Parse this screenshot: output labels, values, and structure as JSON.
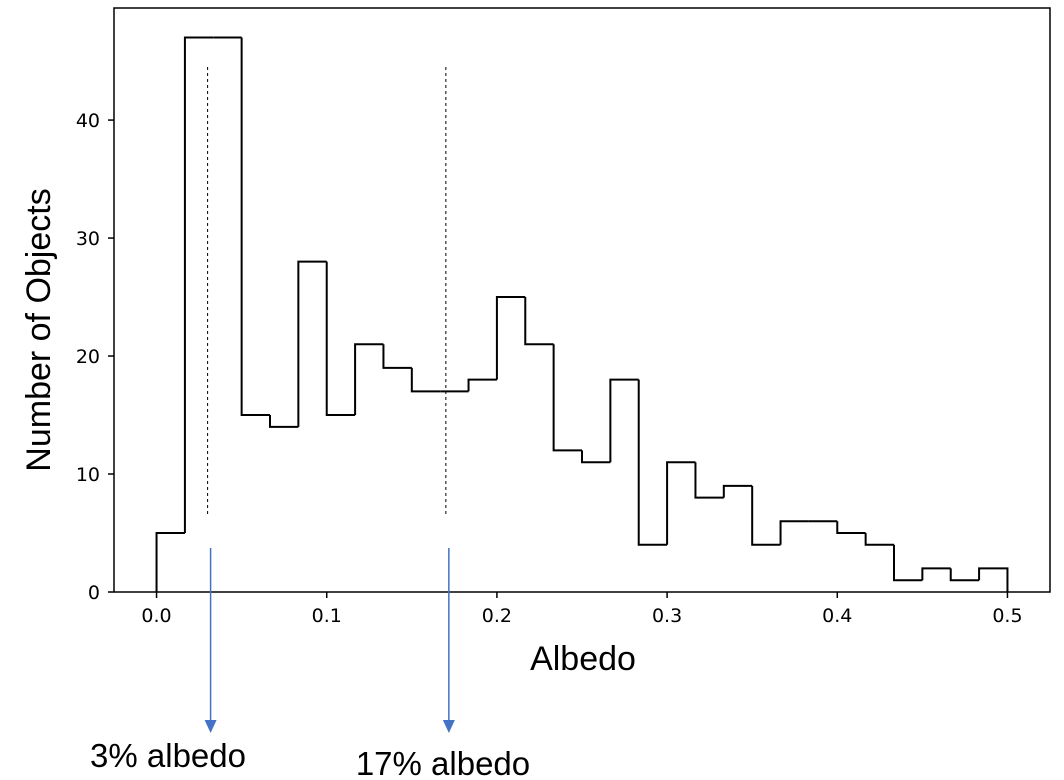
{
  "chart_data": {
    "type": "bar",
    "title": "",
    "xlabel": "Albedo",
    "ylabel": "Number of Objects",
    "xlim": [
      -0.025,
      0.525
    ],
    "ylim": [
      0,
      49.5
    ],
    "grid": false,
    "bin_edges": [
      0.0,
      0.01667,
      0.03333,
      0.05,
      0.06667,
      0.08333,
      0.1,
      0.11667,
      0.13333,
      0.15,
      0.16667,
      0.18333,
      0.2,
      0.21667,
      0.23333,
      0.25,
      0.26667,
      0.28333,
      0.3,
      0.31667,
      0.33333,
      0.35,
      0.36667,
      0.38333,
      0.4,
      0.41667,
      0.43333,
      0.45,
      0.46667,
      0.48333,
      0.5
    ],
    "values": [
      5,
      47,
      47,
      15,
      14,
      28,
      15,
      21,
      19,
      17,
      17,
      18,
      25,
      21,
      12,
      11,
      18,
      4,
      11,
      8,
      9,
      4,
      6,
      6,
      5,
      4,
      1,
      2,
      1,
      2
    ],
    "xticks": [
      "0.0",
      "0.1",
      "0.2",
      "0.3",
      "0.4",
      "0.5"
    ],
    "xtick_values": [
      0.0,
      0.1,
      0.2,
      0.3,
      0.4,
      0.5
    ],
    "yticks": [
      "0",
      "10",
      "20",
      "30",
      "40"
    ],
    "ytick_values": [
      0,
      10,
      20,
      30,
      40
    ],
    "reference_lines": [
      {
        "x": 0.03,
        "label": "3% albedo"
      },
      {
        "x": 0.17,
        "label": "17% albedo"
      }
    ],
    "annotation_color": "#4472c4",
    "line_color": "#000000"
  }
}
